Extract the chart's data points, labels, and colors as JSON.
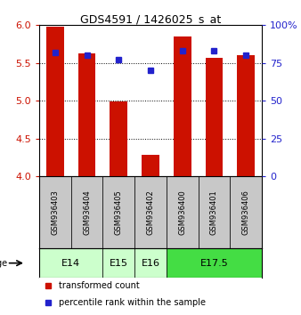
{
  "title": "GDS4591 / 1426025_s_at",
  "samples": [
    "GSM936403",
    "GSM936404",
    "GSM936405",
    "GSM936402",
    "GSM936400",
    "GSM936401",
    "GSM936406"
  ],
  "transformed_counts": [
    5.98,
    5.63,
    4.99,
    4.29,
    5.85,
    5.57,
    5.6
  ],
  "percentile_ranks": [
    82,
    80,
    77,
    70,
    83,
    83,
    80
  ],
  "ylim_left": [
    4.0,
    6.0
  ],
  "yticks_left": [
    4.0,
    4.5,
    5.0,
    5.5,
    6.0
  ],
  "ylim_right": [
    0,
    100
  ],
  "yticks_right": [
    0,
    25,
    50,
    75,
    100
  ],
  "yticklabels_right": [
    "0",
    "25",
    "50",
    "75",
    "100%"
  ],
  "bar_color": "#cc1100",
  "dot_color": "#2222cc",
  "left_tick_color": "#cc1100",
  "right_tick_color": "#2222cc",
  "sample_box_color": "#c8c8c8",
  "legend_bar_label": "transformed count",
  "legend_dot_label": "percentile rank within the sample",
  "bar_width": 0.55,
  "baseline": 4.0,
  "age_spans": [
    {
      "label": "E14",
      "start": 0,
      "end": 1,
      "color": "#ccffcc"
    },
    {
      "label": "E15",
      "start": 2,
      "end": 2,
      "color": "#ccffcc"
    },
    {
      "label": "E16",
      "start": 3,
      "end": 3,
      "color": "#ccffcc"
    },
    {
      "label": "E17.5",
      "start": 4,
      "end": 6,
      "color": "#44dd44"
    }
  ]
}
